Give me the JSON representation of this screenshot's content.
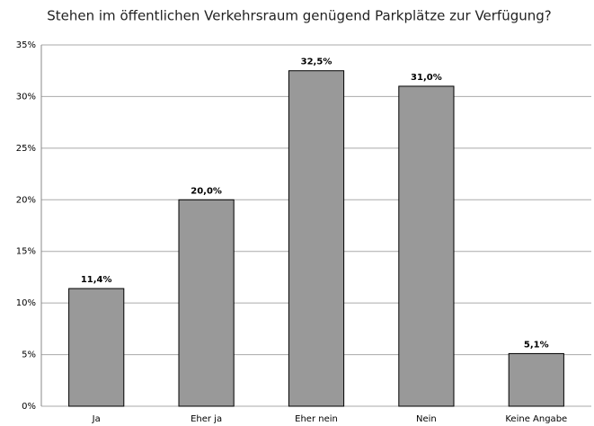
{
  "chart_data": {
    "type": "bar",
    "title": "Stehen im öffentlichen Verkehrsraum genügend Parkplätze zur Verfügung?",
    "categories": [
      "Ja",
      "Eher ja",
      "Eher nein",
      "Nein",
      "Keine Angabe"
    ],
    "values": [
      11.4,
      20.0,
      32.5,
      31.0,
      5.1
    ],
    "value_labels": [
      "11,4%",
      "20,0%",
      "32,5%",
      "31,0%",
      "5,1%"
    ],
    "color": "#999999",
    "ylim": [
      0,
      35
    ],
    "yticks": [
      {
        "value": 0,
        "label": "0%"
      },
      {
        "value": 5,
        "label": "5%"
      },
      {
        "value": 10,
        "label": "10%"
      },
      {
        "value": 15,
        "label": "15%"
      },
      {
        "value": 20,
        "label": "20%"
      },
      {
        "value": 25,
        "label": "25%"
      },
      {
        "value": 30,
        "label": "30%"
      },
      {
        "value": 35,
        "label": "35%"
      }
    ],
    "grid": true
  }
}
